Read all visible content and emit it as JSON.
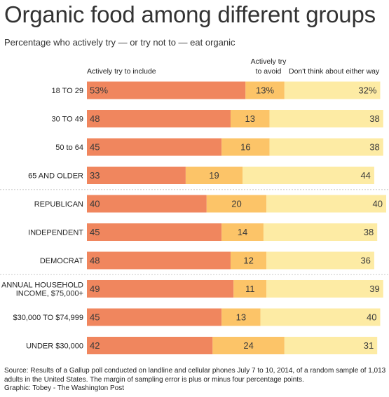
{
  "header": {
    "title": "Organic food among different groups",
    "subtitle": "Percentage who actively try  — or try not to — eat organic"
  },
  "legend": {
    "include": "Actively try to include",
    "avoid_line1": "Actively try",
    "avoid_line2": "to avoid",
    "neither": "Don't think about either way"
  },
  "colors": {
    "include": "#f0865e",
    "avoid": "#fcc468",
    "neither": "#fdeba4",
    "divider": "#cccccc"
  },
  "chart_data": {
    "type": "bar",
    "stacked": true,
    "orientation": "horizontal",
    "categories": [
      [
        "18 TO 29"
      ],
      [
        "30 TO 49"
      ],
      [
        "50 to 64"
      ],
      [
        "65 AND OLDER"
      ],
      [
        "REPUBLICAN"
      ],
      [
        "INDEPENDENT"
      ],
      [
        "DEMOCRAT"
      ],
      [
        "ANNUAL HOUSEHOLD",
        "INCOME, $75,000+"
      ],
      [
        "$30,000 TO $74,999"
      ],
      [
        "UNDER $30,000"
      ]
    ],
    "series": [
      {
        "name": "Actively try to include",
        "values": [
          53,
          48,
          45,
          33,
          40,
          45,
          48,
          49,
          45,
          42
        ]
      },
      {
        "name": "Actively try to avoid",
        "values": [
          13,
          13,
          16,
          19,
          20,
          14,
          12,
          11,
          13,
          24
        ]
      },
      {
        "name": "Don't think about either way",
        "values": [
          32,
          38,
          38,
          44,
          40,
          38,
          36,
          39,
          40,
          31
        ]
      }
    ],
    "value_labels": [
      [
        "53%",
        "13%",
        "32%"
      ],
      [
        "48",
        "13",
        "38"
      ],
      [
        "45",
        "16",
        "38"
      ],
      [
        "33",
        "19",
        "44"
      ],
      [
        "40",
        "20",
        "40"
      ],
      [
        "45",
        "14",
        "38"
      ],
      [
        "48",
        "12",
        "36"
      ],
      [
        "49",
        "11",
        "39"
      ],
      [
        "45",
        "13",
        "40"
      ],
      [
        "42",
        "24",
        "31"
      ]
    ],
    "group_breaks_after": [
      3,
      6
    ]
  },
  "footer": {
    "source": "Source: Results of a Gallup poll conducted on landline and cellular phones July 7 to 10, 2014, of a random sample of 1,013 adults in the United States. The margin of sampling error is plus or minus four percentage points.",
    "credit": "Graphic: Tobey - The Washington Post"
  }
}
